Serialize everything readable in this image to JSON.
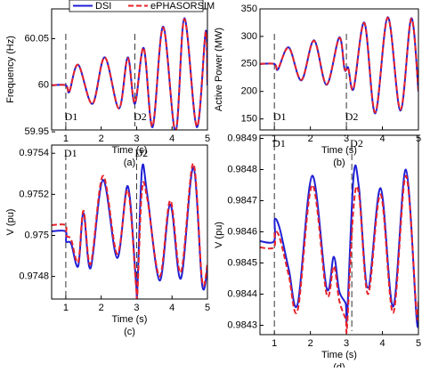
{
  "chart_data": [
    {
      "type": "line",
      "ylabel": "Frequency (Hz)",
      "xlabel": "Time (s)",
      "caption": "(a)",
      "legend": "top",
      "xlim": [
        0.6,
        5
      ],
      "xticks": [
        1,
        2,
        3,
        4,
        5
      ],
      "ylim": [
        59.952,
        60.082
      ],
      "yticks": [
        59.95,
        60,
        60.05
      ],
      "annotations": [
        {
          "text": "D1",
          "x": 1
        },
        {
          "text": "D2",
          "x": 2.95
        }
      ],
      "x": [
        0.6,
        1,
        1.1,
        1.35,
        1.75,
        2.1,
        2.5,
        2.75,
        2.95,
        3.2,
        3.45,
        3.75,
        4.1,
        4.35,
        4.7,
        4.95,
        5
      ],
      "series": [
        {
          "name": "DSI",
          "color": "#1f1fd6",
          "dash": false,
          "values": [
            60,
            60,
            59.993,
            60.022,
            59.98,
            60.03,
            59.975,
            60.03,
            59.98,
            60.04,
            59.955,
            60.063,
            59.95,
            60.072,
            59.955,
            60.058,
            60.0
          ]
        },
        {
          "name": "ePHASORSIM",
          "color": "#e8222a",
          "dash": true,
          "values": [
            60,
            60,
            59.993,
            60.022,
            59.98,
            60.03,
            59.975,
            60.029,
            59.981,
            60.04,
            59.956,
            60.062,
            59.951,
            60.071,
            59.956,
            60.057,
            60.002
          ]
        }
      ]
    },
    {
      "type": "line",
      "ylabel": "Active Power (MW)",
      "xlabel": "Time (s)",
      "caption": "(b)",
      "xlim": [
        0.6,
        5
      ],
      "xticks": [
        1,
        2,
        3,
        4,
        5
      ],
      "ylim": [
        130,
        350
      ],
      "yticks": [
        150,
        200,
        250,
        300,
        350
      ],
      "annotations": [
        {
          "text": "D1",
          "x": 1
        },
        {
          "text": "D2",
          "x": 3
        }
      ],
      "x": [
        0.6,
        1,
        1.1,
        1.4,
        1.75,
        2.1,
        2.45,
        2.8,
        2.95,
        3.05,
        3.2,
        3.5,
        3.8,
        4.15,
        4.5,
        4.8,
        5
      ],
      "series": [
        {
          "name": "DSI",
          "color": "#1f1fd6",
          "dash": false,
          "values": [
            250,
            250,
            240,
            280,
            220,
            293,
            212,
            298,
            240,
            243,
            205,
            325,
            160,
            335,
            165,
            333,
            200
          ]
        },
        {
          "name": "ePHASORSIM",
          "color": "#e8222a",
          "dash": true,
          "values": [
            250,
            250,
            241,
            279,
            221,
            292,
            213,
            297,
            241,
            242,
            206,
            324,
            162,
            334,
            167,
            332,
            202
          ]
        }
      ]
    },
    {
      "type": "line",
      "ylabel": "V (pu)",
      "xlabel": "Time (s)",
      "caption": "(c)",
      "xlim": [
        0.6,
        5
      ],
      "xticks": [
        1,
        2,
        3,
        4,
        5
      ],
      "ylim": [
        0.97469,
        0.97544
      ],
      "yticks": [
        0.9748,
        0.975,
        0.9752,
        0.9754
      ],
      "annotations": [
        {
          "text": "D1",
          "x": 1
        },
        {
          "text": "D2",
          "x": 3
        }
      ],
      "x": [
        0.6,
        0.99,
        1.01,
        1.15,
        1.35,
        1.5,
        1.7,
        2.05,
        2.45,
        2.75,
        2.98,
        3.02,
        3.15,
        3.3,
        3.65,
        3.95,
        4.25,
        4.6,
        4.85,
        5
      ],
      "series": [
        {
          "name": "DSI",
          "color": "#1f1fd6",
          "dash": false,
          "values": [
            0.97502,
            0.97502,
            0.97497,
            0.97496,
            0.97485,
            0.97511,
            0.97484,
            0.97527,
            0.97489,
            0.97524,
            0.97478,
            0.97474,
            0.97532,
            0.9752,
            0.97478,
            0.97515,
            0.97479,
            0.97533,
            0.97476,
            0.97484
          ]
        },
        {
          "name": "ePHASORSIM",
          "color": "#e8222a",
          "dash": true,
          "values": [
            0.97505,
            0.97505,
            0.975,
            0.97498,
            0.97487,
            0.97512,
            0.97486,
            0.97529,
            0.97491,
            0.97522,
            0.97476,
            0.97471,
            0.97522,
            0.97518,
            0.9748,
            0.97517,
            0.97482,
            0.97535,
            0.97478,
            0.97486
          ]
        }
      ]
    },
    {
      "type": "line",
      "ylabel": "V (pu)",
      "xlabel": "Time (s)",
      "caption": "(d)",
      "xlim": [
        0.6,
        5
      ],
      "xticks": [
        1,
        2,
        3,
        4,
        5
      ],
      "ylim": [
        0.98427,
        0.98491
      ],
      "yticks": [
        0.9843,
        0.9844,
        0.9845,
        0.9846,
        0.9847,
        0.9848,
        0.9849
      ],
      "annotations": [
        {
          "text": "D1",
          "x": 1
        },
        {
          "text": "D2",
          "x": 3.15
        }
      ],
      "x": [
        0.6,
        0.99,
        1.01,
        1.15,
        1.4,
        1.65,
        2.05,
        2.45,
        2.65,
        2.8,
        2.98,
        3.02,
        3.2,
        3.35,
        3.6,
        3.95,
        4.3,
        4.65,
        4.95,
        5
      ],
      "series": [
        {
          "name": "DSI",
          "color": "#1f1fd6",
          "dash": false,
          "values": [
            0.98457,
            0.98457,
            0.98464,
            0.98461,
            0.98448,
            0.98437,
            0.98478,
            0.98442,
            0.98452,
            0.98441,
            0.98437,
            0.98433,
            0.98478,
            0.98474,
            0.98442,
            0.98474,
            0.98436,
            0.9848,
            0.98432,
            0.98436
          ]
        },
        {
          "name": "ePHASORSIM",
          "color": "#e8222a",
          "dash": true,
          "values": [
            0.98455,
            0.98455,
            0.9846,
            0.98458,
            0.98446,
            0.98435,
            0.98475,
            0.9844,
            0.98449,
            0.98438,
            0.98432,
            0.9843,
            0.98468,
            0.98472,
            0.9844,
            0.98472,
            0.98434,
            0.98478,
            0.98434,
            0.98438
          ]
        }
      ]
    }
  ]
}
